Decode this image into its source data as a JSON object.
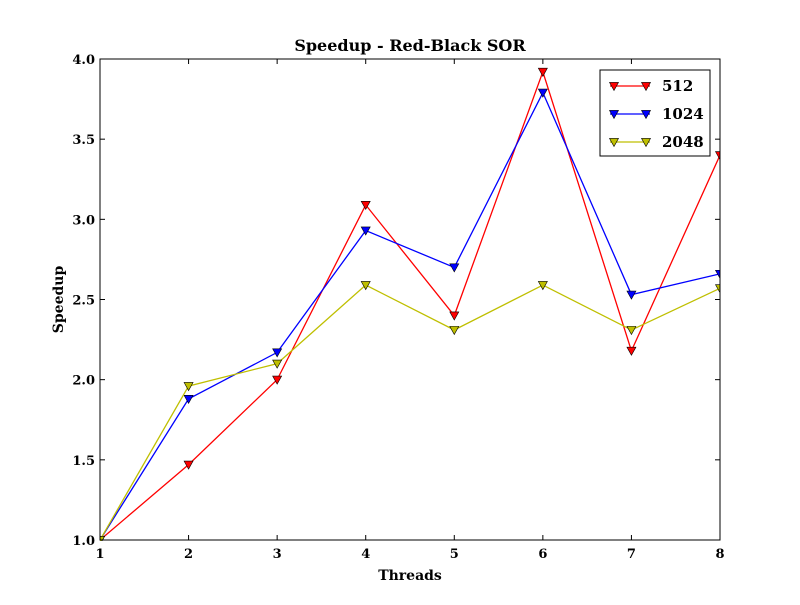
{
  "chart_data": {
    "type": "line",
    "title": "Speedup - Red-Black SOR",
    "xlabel": "Threads",
    "ylabel": "Speedup",
    "x": [
      1,
      2,
      3,
      4,
      5,
      6,
      7,
      8
    ],
    "xlim": [
      1,
      8
    ],
    "ylim": [
      1.0,
      4.0
    ],
    "xticks": [
      "1",
      "2",
      "3",
      "4",
      "5",
      "6",
      "7",
      "8"
    ],
    "yticks": [
      "1.0",
      "1.5",
      "2.0",
      "2.5",
      "3.0",
      "3.5",
      "4.0"
    ],
    "grid": false,
    "legend_position": "top-right",
    "marker": "triangle-down",
    "series": [
      {
        "name": "512",
        "color": "#ff0000",
        "values": [
          1.0,
          1.47,
          2.0,
          3.09,
          2.4,
          3.92,
          2.18,
          3.4
        ]
      },
      {
        "name": "1024",
        "color": "#0000ff",
        "values": [
          1.0,
          1.88,
          2.17,
          2.93,
          2.7,
          3.79,
          2.53,
          2.66
        ]
      },
      {
        "name": "2048",
        "color": "#bfbf00",
        "values": [
          1.0,
          1.96,
          2.1,
          2.59,
          2.31,
          2.59,
          2.31,
          2.57
        ]
      }
    ]
  }
}
